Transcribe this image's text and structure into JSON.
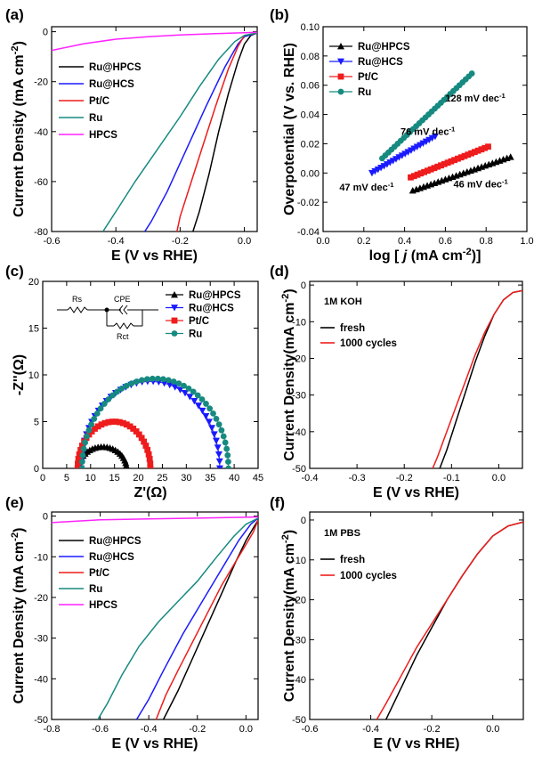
{
  "colors": {
    "Ru@HPCS": "#000000",
    "Ru@HCS": "#1a1aff",
    "Pt/C": "#ee1c1c",
    "Ru": "#168a80",
    "HPCS": "#ff22ff"
  },
  "chart_data": [
    {
      "id": "a",
      "panel_label": "(a)",
      "type": "line",
      "xlabel": "E (V vs RHE)",
      "ylabel": "Current Density (mA cm-2)",
      "xlim": [
        -0.6,
        0.04
      ],
      "ylim": [
        -80,
        2
      ],
      "xticks": [
        -0.6,
        -0.4,
        -0.2,
        0.0
      ],
      "xtick_labels": [
        "-0.6",
        "-0.4",
        "-0.2",
        "0.0"
      ],
      "yticks": [
        0,
        -20,
        -40,
        -60,
        -80
      ],
      "ytick_labels": [
        "0",
        "-20",
        "-40",
        "-60",
        "-80"
      ],
      "legend_position": "center-left",
      "legend_marker": "line",
      "series": [
        {
          "name": "Ru@HPCS",
          "x": [
            0.04,
            0.02,
            0.0,
            -0.02,
            -0.05,
            -0.08,
            -0.11,
            -0.14,
            -0.16
          ],
          "y": [
            -0.5,
            -1.5,
            -5,
            -12,
            -25,
            -40,
            -57,
            -72,
            -80
          ]
        },
        {
          "name": "Ru@HCS",
          "x": [
            0.04,
            0.0,
            -0.02,
            -0.06,
            -0.12,
            -0.18,
            -0.24,
            -0.29,
            -0.31
          ],
          "y": [
            -0.5,
            -2,
            -5,
            -14,
            -30,
            -47,
            -64,
            -76,
            -80
          ]
        },
        {
          "name": "Pt/C",
          "x": [
            0.04,
            0.0,
            -0.02,
            -0.05,
            -0.09,
            -0.13,
            -0.17,
            -0.2,
            -0.21
          ],
          "y": [
            -0.5,
            -1.5,
            -6,
            -15,
            -30,
            -46,
            -62,
            -74,
            -80
          ]
        },
        {
          "name": "Ru",
          "x": [
            0.04,
            0.0,
            -0.03,
            -0.08,
            -0.14,
            -0.2,
            -0.27,
            -0.34,
            -0.4,
            -0.44
          ],
          "y": [
            -0.5,
            -1.5,
            -4,
            -11,
            -22,
            -34,
            -47,
            -60,
            -72,
            -80
          ]
        },
        {
          "name": "HPCS",
          "x": [
            0.04,
            0.0,
            -0.1,
            -0.2,
            -0.3,
            -0.4,
            -0.5,
            -0.6
          ],
          "y": [
            -0.2,
            -0.4,
            -0.8,
            -1.3,
            -2.0,
            -3.0,
            -4.8,
            -7.5
          ]
        }
      ]
    },
    {
      "id": "b",
      "panel_label": "(b)",
      "type": "scatter",
      "xlabel": "log [ j (mA cm-2)]",
      "ylabel": "Overpotential (V vs. RHE)",
      "xlim": [
        0.0,
        1.0
      ],
      "ylim": [
        -0.04,
        0.1
      ],
      "xticks": [
        0.0,
        0.2,
        0.4,
        0.6,
        0.8,
        1.0
      ],
      "xtick_labels": [
        "0.0",
        "0.2",
        "0.4",
        "0.6",
        "0.8",
        "1.0"
      ],
      "yticks": [
        -0.04,
        -0.02,
        0.0,
        0.02,
        0.04,
        0.06,
        0.08,
        0.1
      ],
      "ytick_labels": [
        "-0.04",
        "-0.02",
        "0.00",
        "0.02",
        "0.04",
        "0.06",
        "0.08",
        "0.10"
      ],
      "legend_position": "top-left",
      "series": [
        {
          "name": "Ru@HPCS",
          "marker": "triangle-up",
          "x0": 0.44,
          "y0": -0.012,
          "x1": 0.92,
          "y1": 0.011,
          "points": 28
        },
        {
          "name": "Ru@HCS",
          "marker": "triangle-down",
          "x0": 0.24,
          "y0": 0.0,
          "x1": 0.55,
          "y1": 0.025,
          "points": 22
        },
        {
          "name": "Pt/C",
          "marker": "square",
          "x0": 0.43,
          "y0": -0.003,
          "x1": 0.81,
          "y1": 0.018,
          "points": 24
        },
        {
          "name": "Ru",
          "marker": "circle",
          "x0": 0.29,
          "y0": 0.01,
          "x1": 0.73,
          "y1": 0.068,
          "points": 30
        }
      ],
      "annotations": [
        {
          "text": "128 mV dec",
          "sup": "-1",
          "x": 0.6,
          "y": 0.049
        },
        {
          "text": "76 mV dec",
          "sup": "-1",
          "x": 0.38,
          "y": 0.026
        },
        {
          "text": "47 mV dec",
          "sup": "-1",
          "x": 0.08,
          "y": -0.012
        },
        {
          "text": "46 mV dec",
          "sup": "-1",
          "x": 0.64,
          "y": -0.01
        }
      ]
    },
    {
      "id": "c",
      "panel_label": "(c)",
      "type": "scatter",
      "xlabel": "Z'(Ω)",
      "ylabel": "-Z''(Ω)",
      "xlim": [
        0,
        45
      ],
      "ylim": [
        0,
        20
      ],
      "xticks": [
        0,
        5,
        10,
        15,
        20,
        25,
        30,
        35,
        40,
        45
      ],
      "xtick_labels": [
        "0",
        "5",
        "10",
        "15",
        "20",
        "25",
        "30",
        "35",
        "40",
        "45"
      ],
      "yticks": [
        0,
        5,
        10,
        15,
        20
      ],
      "ytick_labels": [
        "0",
        "5",
        "10",
        "15",
        "20"
      ],
      "legend_position": "top-right",
      "circuit_labels": {
        "rs": "Rs",
        "cpe": "CPE",
        "rct": "Rct"
      },
      "series": [
        {
          "name": "Ru@HPCS",
          "marker": "triangle-up",
          "x_start": 7.5,
          "x_end": 17.5,
          "peak": 2.3,
          "points": 26
        },
        {
          "name": "Ru@HCS",
          "marker": "triangle-down",
          "x_start": 8.0,
          "x_end": 37.0,
          "peak": 9.3,
          "points": 40
        },
        {
          "name": "Pt/C",
          "marker": "square",
          "x_start": 7.3,
          "x_end": 22.5,
          "peak": 5.0,
          "points": 32
        },
        {
          "name": "Ru",
          "marker": "circle",
          "x_start": 8.2,
          "x_end": 38.8,
          "peak": 9.6,
          "points": 44
        }
      ]
    },
    {
      "id": "d",
      "panel_label": "(d)",
      "type": "line",
      "xlabel": "E (V vs RHE)",
      "ylabel": "Current Density(mA cm-2)",
      "xlim": [
        -0.4,
        0.05
      ],
      "ylim": [
        -50,
        1
      ],
      "xticks": [
        -0.4,
        -0.3,
        -0.2,
        -0.1,
        0.0
      ],
      "xtick_labels": [
        "-0.4",
        "-0.3",
        "-0.2",
        "-0.1",
        "0.0"
      ],
      "yticks": [
        0,
        -10,
        -20,
        -30,
        -40,
        -50
      ],
      "ytick_labels": [
        "0",
        "-10",
        "-20",
        "-30",
        "-40",
        "-50"
      ],
      "condition": "1M KOH",
      "legend_position": "upper-left",
      "legend_marker": "line",
      "series": [
        {
          "name": "fresh",
          "color": "#000000",
          "x": [
            0.05,
            0.03,
            0.01,
            -0.01,
            -0.03,
            -0.05,
            -0.07,
            -0.09,
            -0.11,
            -0.125
          ],
          "y": [
            -1.5,
            -2,
            -4,
            -8,
            -14,
            -21,
            -29,
            -37,
            -45,
            -50
          ]
        },
        {
          "name": "1000 cycles",
          "color": "#ee1c1c",
          "x": [
            0.05,
            0.03,
            0.01,
            -0.01,
            -0.03,
            -0.05,
            -0.07,
            -0.09,
            -0.11,
            -0.13,
            -0.14
          ],
          "y": [
            -1.5,
            -2,
            -4,
            -8,
            -13,
            -19,
            -26,
            -33,
            -40,
            -47,
            -50
          ]
        }
      ]
    },
    {
      "id": "e",
      "panel_label": "(e)",
      "type": "line",
      "xlabel": "E (V vs RHE)",
      "ylabel": "Current Density (mA cm-2)",
      "xlim": [
        -0.8,
        0.05
      ],
      "ylim": [
        -50,
        1
      ],
      "xticks": [
        -0.8,
        -0.6,
        -0.4,
        -0.2,
        0.0
      ],
      "xtick_labels": [
        "-0.8",
        "-0.6",
        "-0.4",
        "-0.2",
        "0.0"
      ],
      "yticks": [
        0,
        -10,
        -20,
        -30,
        -40,
        -50
      ],
      "ytick_labels": [
        "0",
        "-10",
        "-20",
        "-30",
        "-40",
        "-50"
      ],
      "legend_position": "lower-left",
      "legend_marker": "line",
      "series": [
        {
          "name": "Ru@HPCS",
          "x": [
            0.05,
            0.03,
            0.0,
            -0.04,
            -0.1,
            -0.16,
            -0.22,
            -0.28,
            -0.34
          ],
          "y": [
            -1,
            -3,
            -6,
            -11,
            -19,
            -27,
            -35,
            -43,
            -50
          ]
        },
        {
          "name": "Ru@HCS",
          "x": [
            0.05,
            0.02,
            -0.03,
            -0.1,
            -0.18,
            -0.26,
            -0.34,
            -0.4,
            -0.45
          ],
          "y": [
            -0.5,
            -2,
            -6,
            -13,
            -21,
            -29,
            -38,
            -45,
            -50
          ]
        },
        {
          "name": "Pt/C",
          "x": [
            0.05,
            0.03,
            0.0,
            -0.04,
            -0.1,
            -0.16,
            -0.22,
            -0.28,
            -0.33,
            -0.37
          ],
          "y": [
            -1,
            -4,
            -7,
            -11,
            -17,
            -24,
            -31,
            -38,
            -44,
            -50
          ]
        },
        {
          "name": "Ru",
          "x": [
            0.05,
            0.0,
            -0.05,
            -0.12,
            -0.2,
            -0.28,
            -0.36,
            -0.44,
            -0.51,
            -0.57,
            -0.61
          ],
          "y": [
            -0.5,
            -2,
            -5,
            -10,
            -16,
            -21,
            -26,
            -32,
            -39,
            -46,
            -50
          ]
        },
        {
          "name": "HPCS",
          "x": [
            0.05,
            0.0,
            -0.2,
            -0.4,
            -0.6,
            -0.8
          ],
          "y": [
            -0.2,
            -0.3,
            -0.5,
            -0.7,
            -0.9,
            -1.6
          ]
        }
      ]
    },
    {
      "id": "f",
      "panel_label": "(f)",
      "type": "line",
      "xlabel": "E (V vs RHE)",
      "ylabel": "Current Density(mA cm-2)",
      "xlim": [
        -0.6,
        0.1
      ],
      "ylim": [
        -50,
        2
      ],
      "xticks": [
        -0.6,
        -0.4,
        -0.2,
        0.0
      ],
      "xtick_labels": [
        "-0.6",
        "-0.4",
        "-0.2",
        "0.0"
      ],
      "yticks": [
        0,
        -10,
        -20,
        -30,
        -40,
        -50
      ],
      "ytick_labels": [
        "0",
        "-10",
        "-20",
        "-30",
        "-40",
        "-50"
      ],
      "condition": "1M PBS",
      "legend_position": "upper-left",
      "legend_marker": "line",
      "series": [
        {
          "name": "fresh",
          "color": "#000000",
          "x": [
            0.1,
            0.05,
            0.0,
            -0.05,
            -0.1,
            -0.15,
            -0.2,
            -0.25,
            -0.3,
            -0.35
          ],
          "y": [
            -0.5,
            -1.5,
            -4,
            -8.5,
            -14,
            -20,
            -27,
            -34,
            -42,
            -50
          ]
        },
        {
          "name": "1000 cycles",
          "color": "#ee1c1c",
          "x": [
            0.1,
            0.05,
            0.0,
            -0.05,
            -0.1,
            -0.15,
            -0.2,
            -0.25,
            -0.3,
            -0.35,
            -0.38
          ],
          "y": [
            -0.5,
            -1.5,
            -4,
            -8.5,
            -14,
            -20,
            -26,
            -32,
            -39,
            -46,
            -50
          ]
        }
      ]
    }
  ]
}
